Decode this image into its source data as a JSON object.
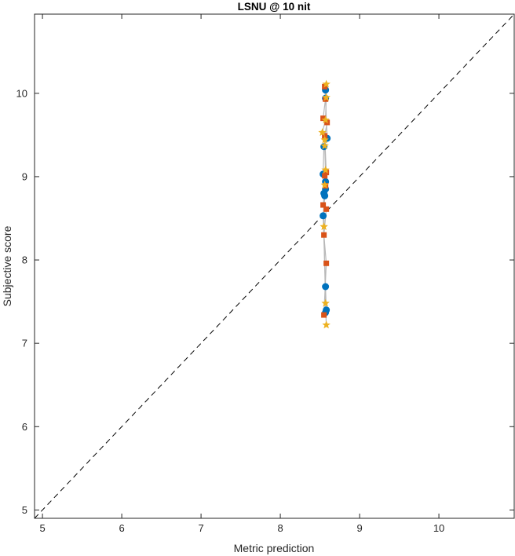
{
  "chart_data": {
    "type": "scatter",
    "title": "LSNU @ 10 nit",
    "xlabel": "Metric prediction",
    "ylabel": "Subjective score",
    "xlim": [
      4.9,
      10.95
    ],
    "ylim": [
      4.9,
      10.95
    ],
    "xticks": [
      5,
      6,
      7,
      8,
      9,
      10
    ],
    "yticks": [
      5,
      6,
      7,
      8,
      9,
      10
    ],
    "grid": false,
    "legend": "none",
    "identity_line": {
      "style": "dashed",
      "color": "#000000"
    },
    "series": [
      {
        "marker": "circle",
        "color": "#0072BD",
        "points": [
          [
            8.57,
            10.04
          ],
          [
            8.57,
            9.94
          ],
          [
            8.59,
            9.46
          ],
          [
            8.55,
            9.36
          ],
          [
            8.54,
            9.03
          ],
          [
            8.57,
            8.94
          ],
          [
            8.57,
            8.85
          ],
          [
            8.55,
            8.8
          ],
          [
            8.56,
            8.77
          ],
          [
            8.54,
            8.53
          ],
          [
            8.57,
            7.68
          ],
          [
            8.58,
            7.4
          ],
          [
            8.57,
            7.37
          ]
        ]
      },
      {
        "marker": "square",
        "color": "#D95319",
        "points": [
          [
            8.56,
            10.08
          ],
          [
            8.57,
            9.93
          ],
          [
            8.54,
            9.7
          ],
          [
            8.59,
            9.65
          ],
          [
            8.56,
            9.49
          ],
          [
            8.58,
            9.05
          ],
          [
            8.56,
            9.01
          ],
          [
            8.57,
            8.89
          ],
          [
            8.58,
            8.61
          ],
          [
            8.54,
            8.66
          ],
          [
            8.55,
            8.3
          ],
          [
            8.58,
            7.96
          ],
          [
            8.55,
            7.34
          ]
        ]
      },
      {
        "marker": "star",
        "color": "#EDB120",
        "points": [
          [
            8.58,
            10.11
          ],
          [
            8.58,
            9.95
          ],
          [
            8.57,
            9.68
          ],
          [
            8.53,
            9.53
          ],
          [
            8.56,
            9.44
          ],
          [
            8.56,
            9.37
          ],
          [
            8.57,
            9.08
          ],
          [
            8.56,
            8.9
          ],
          [
            8.55,
            8.4
          ],
          [
            8.57,
            7.48
          ],
          [
            8.58,
            7.22
          ]
        ]
      }
    ]
  }
}
